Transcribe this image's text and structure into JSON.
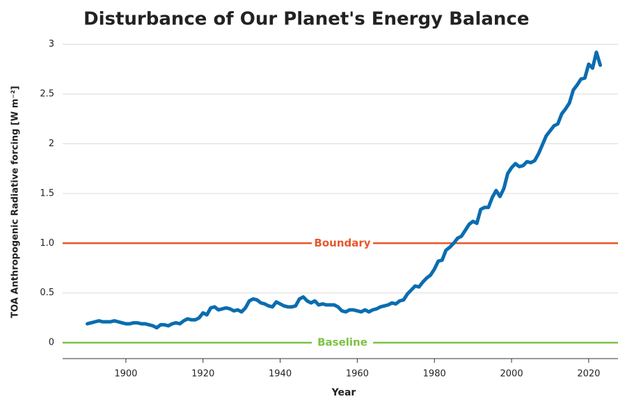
{
  "chart_data": {
    "type": "line",
    "title": "Disturbance of Our Planet's Energy Balance",
    "xlabel": "Year",
    "ylabel": "TOA Anthropogenic Radiative forcing [W m⁻²]",
    "x": [
      1890,
      1891,
      1892,
      1893,
      1894,
      1895,
      1896,
      1897,
      1898,
      1899,
      1900,
      1901,
      1902,
      1903,
      1904,
      1905,
      1906,
      1907,
      1908,
      1909,
      1910,
      1911,
      1912,
      1913,
      1914,
      1915,
      1916,
      1917,
      1918,
      1919,
      1920,
      1921,
      1922,
      1923,
      1924,
      1925,
      1926,
      1927,
      1928,
      1929,
      1930,
      1931,
      1932,
      1933,
      1934,
      1935,
      1936,
      1937,
      1938,
      1939,
      1940,
      1941,
      1942,
      1943,
      1944,
      1945,
      1946,
      1947,
      1948,
      1949,
      1950,
      1951,
      1952,
      1953,
      1954,
      1955,
      1956,
      1957,
      1958,
      1959,
      1960,
      1961,
      1962,
      1963,
      1964,
      1965,
      1966,
      1967,
      1968,
      1969,
      1970,
      1971,
      1972,
      1973,
      1974,
      1975,
      1976,
      1977,
      1978,
      1979,
      1980,
      1981,
      1982,
      1983,
      1984,
      1985,
      1986,
      1987,
      1988,
      1989,
      1990,
      1991,
      1992,
      1993,
      1994,
      1995,
      1996,
      1997,
      1998,
      1999,
      2000,
      2001,
      2002,
      2003,
      2004,
      2005,
      2006,
      2007,
      2008,
      2009,
      2010,
      2011,
      2012,
      2013,
      2014,
      2015,
      2016,
      2017,
      2018,
      2019,
      2020,
      2021,
      2022,
      2023
    ],
    "series": [
      {
        "name": "TOA Anthropogenic Radiative forcing",
        "color": "#0a6db0",
        "values": [
          0.19,
          0.2,
          0.21,
          0.22,
          0.21,
          0.21,
          0.21,
          0.22,
          0.21,
          0.2,
          0.19,
          0.19,
          0.2,
          0.2,
          0.19,
          0.19,
          0.18,
          0.17,
          0.15,
          0.18,
          0.18,
          0.17,
          0.19,
          0.2,
          0.19,
          0.22,
          0.24,
          0.23,
          0.23,
          0.25,
          0.3,
          0.28,
          0.35,
          0.36,
          0.33,
          0.34,
          0.35,
          0.34,
          0.32,
          0.33,
          0.31,
          0.35,
          0.42,
          0.44,
          0.43,
          0.4,
          0.39,
          0.37,
          0.36,
          0.41,
          0.39,
          0.37,
          0.36,
          0.36,
          0.37,
          0.44,
          0.46,
          0.42,
          0.4,
          0.42,
          0.38,
          0.39,
          0.38,
          0.38,
          0.38,
          0.36,
          0.32,
          0.31,
          0.33,
          0.33,
          0.32,
          0.31,
          0.33,
          0.31,
          0.33,
          0.34,
          0.36,
          0.37,
          0.38,
          0.4,
          0.39,
          0.42,
          0.43,
          0.49,
          0.53,
          0.57,
          0.56,
          0.61,
          0.65,
          0.68,
          0.74,
          0.82,
          0.83,
          0.93,
          0.96,
          1.0,
          1.05,
          1.07,
          1.13,
          1.19,
          1.22,
          1.2,
          1.34,
          1.36,
          1.36,
          1.46,
          1.53,
          1.47,
          1.55,
          1.7,
          1.76,
          1.8,
          1.77,
          1.78,
          1.82,
          1.81,
          1.83,
          1.9,
          1.99,
          2.08,
          2.13,
          2.18,
          2.2,
          2.3,
          2.35,
          2.41,
          2.54,
          2.59,
          2.65,
          2.66,
          2.8,
          2.76,
          2.92,
          2.79
        ]
      }
    ],
    "xlim": [
      1883.6,
      2027.6
    ],
    "xticks": [
      1900,
      1920,
      1940,
      1960,
      1980,
      2000,
      2020
    ],
    "ylim": [
      -0.16,
      3.06
    ],
    "yticks": [
      0,
      0.5,
      {
        "value": 1,
        "label": "1.0"
      },
      1.5,
      2,
      2.5,
      3
    ],
    "grid": true,
    "reference_lines": [
      {
        "value": 1,
        "label": "Boundary",
        "color": "#e8562a"
      },
      {
        "value": 0,
        "label": "Baseline",
        "color": "#7dc242"
      }
    ]
  }
}
